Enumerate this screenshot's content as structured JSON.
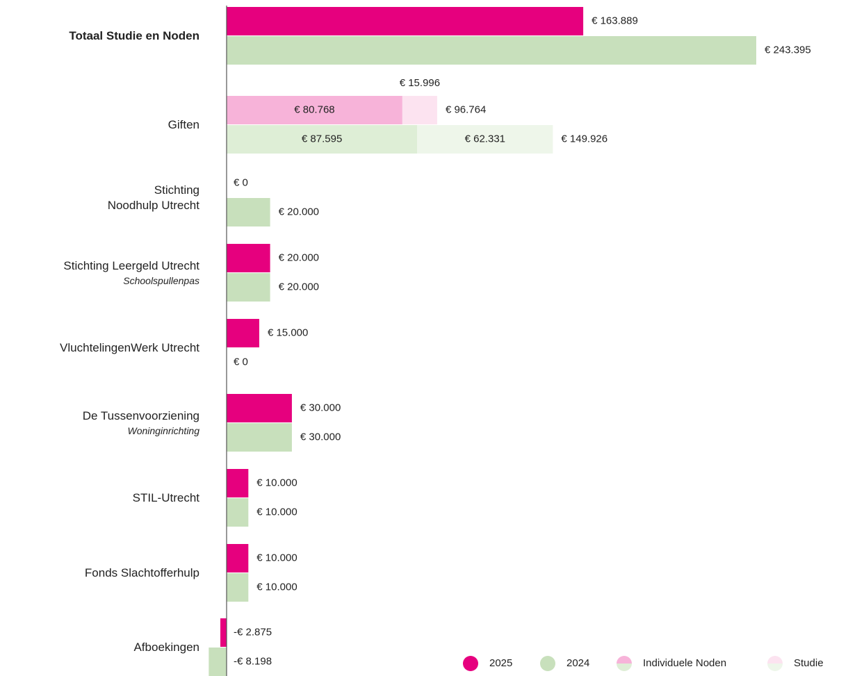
{
  "chart_data": {
    "type": "bar",
    "orientation": "horizontal",
    "categories": [
      "Totaal Studie en Noden",
      "Giften",
      "Stichting\nNoodhulp Utrecht",
      "Stichting Leergeld Utrecht",
      "VluchtelingenWerk Utrecht",
      "De Tussenvoorziening",
      "STIL-Utrecht",
      "Fonds Slachtofferhulp",
      "Afboekingen"
    ],
    "sublabels": [
      null,
      null,
      null,
      "Schoolspullenpas",
      null,
      "Woninginrichting",
      null,
      null,
      null
    ],
    "series": [
      {
        "name": "2025",
        "color": "#e6007e",
        "values": [
          163889,
          96764,
          0,
          20000,
          15000,
          30000,
          10000,
          10000,
          -2875
        ],
        "value_labels": [
          "€ 163.889",
          "€ 96.764",
          "€ 0",
          "€ 20.000",
          "€ 15.000",
          "€ 30.000",
          "€ 10.000",
          "€ 10.000",
          "-€ 2.875"
        ]
      },
      {
        "name": "2024",
        "color": "#c8e0bc",
        "values": [
          243395,
          149926,
          20000,
          20000,
          0,
          30000,
          10000,
          10000,
          -8198
        ],
        "value_labels": [
          "€ 243.395",
          "€ 149.926",
          "€ 20.000",
          "€ 20.000",
          "€ 0",
          "€ 30.000",
          "€ 10.000",
          "€ 10.000",
          "-€ 8.198"
        ]
      }
    ],
    "stacked_index": 1,
    "segments": [
      {
        "name": "Individuele Noden",
        "colors": [
          "#f7b3d9",
          "#deeed6"
        ],
        "values": [
          80768,
          87595
        ],
        "value_labels": [
          "€ 80.768",
          "€ 87.595"
        ]
      },
      {
        "name": "Studie",
        "colors": [
          "#fce3f0",
          "#eef6ea"
        ],
        "values": [
          15996,
          62331
        ],
        "value_labels": [
          "€ 15.996",
          "€ 62.331"
        ]
      }
    ]
  }
}
